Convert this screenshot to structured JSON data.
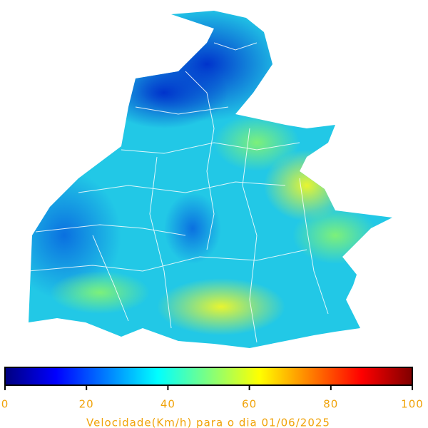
{
  "colorbar": {
    "label": "Velocidade(Km/h) para o dia 01/06/2025",
    "lim": [
      0,
      100
    ],
    "ticks": [
      0,
      20,
      40,
      60,
      80,
      100
    ],
    "colors": [
      "#00007f",
      "#0000ff",
      "#007fff",
      "#00ffff",
      "#7fff7f",
      "#ffff00",
      "#ff7f00",
      "#ff0000",
      "#7f0000"
    ]
  }
}
